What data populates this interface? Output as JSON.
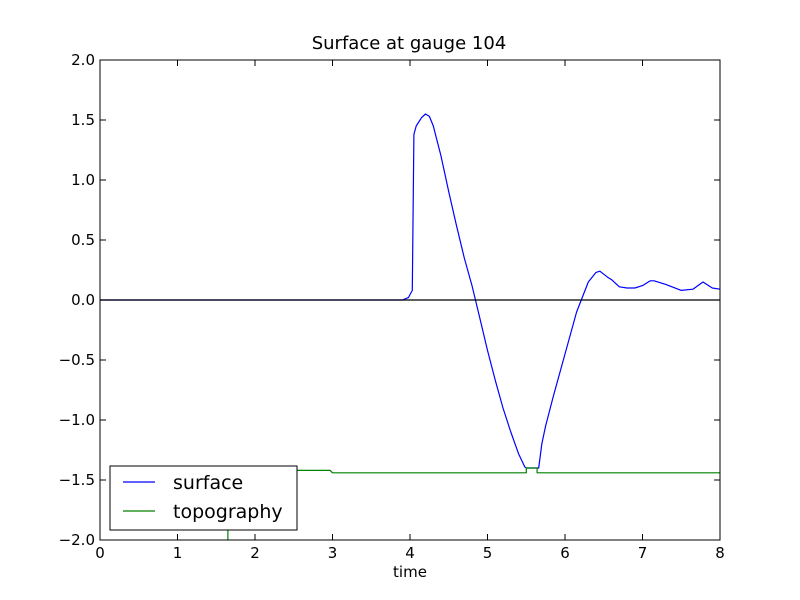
{
  "chart_data": {
    "type": "line",
    "title": "Surface at gauge 104",
    "xlabel": "time",
    "ylabel": "",
    "xlim": [
      0,
      8
    ],
    "ylim": [
      -2,
      2
    ],
    "xticks": [
      "0",
      "1",
      "2",
      "3",
      "4",
      "5",
      "6",
      "7",
      "8"
    ],
    "yticks": [
      "2.0",
      "1.5",
      "1.0",
      "0.5",
      "0.0",
      "−0.5",
      "−1.0",
      "−1.5",
      "−2.0"
    ],
    "grid": false,
    "legend": "lower-left",
    "zero_line": true,
    "series": [
      {
        "name": "surface",
        "color": "#0000ff",
        "x": [
          0,
          3.9,
          3.98,
          4.03,
          4.05,
          4.08,
          4.15,
          4.2,
          4.25,
          4.3,
          4.4,
          4.5,
          4.6,
          4.7,
          4.8,
          4.9,
          5.0,
          5.1,
          5.2,
          5.3,
          5.4,
          5.48,
          5.5,
          5.66,
          5.7,
          5.75,
          5.85,
          6.0,
          6.15,
          6.3,
          6.4,
          6.45,
          6.55,
          6.6,
          6.7,
          6.8,
          6.9,
          7.0,
          7.1,
          7.15,
          7.3,
          7.5,
          7.65,
          7.78,
          7.9,
          8.0
        ],
        "y": [
          0,
          0,
          0.02,
          0.08,
          1.38,
          1.45,
          1.52,
          1.55,
          1.53,
          1.45,
          1.2,
          0.9,
          0.62,
          0.35,
          0.12,
          -0.15,
          -0.42,
          -0.67,
          -0.9,
          -1.1,
          -1.28,
          -1.39,
          -1.4,
          -1.4,
          -1.2,
          -1.05,
          -0.8,
          -0.45,
          -0.1,
          0.15,
          0.23,
          0.24,
          0.19,
          0.17,
          0.11,
          0.1,
          0.1,
          0.12,
          0.16,
          0.16,
          0.13,
          0.08,
          0.09,
          0.15,
          0.1,
          0.09
        ]
      },
      {
        "name": "topography",
        "color": "#008000",
        "x": [
          1.65,
          1.65,
          1.95,
          2.5,
          2.97,
          3.0,
          5.5,
          5.5,
          5.64,
          5.64,
          8.0
        ],
        "y": [
          -2.0,
          -1.42,
          -1.42,
          -1.42,
          -1.42,
          -1.44,
          -1.44,
          -1.4,
          -1.4,
          -1.44,
          -1.44
        ]
      }
    ]
  }
}
